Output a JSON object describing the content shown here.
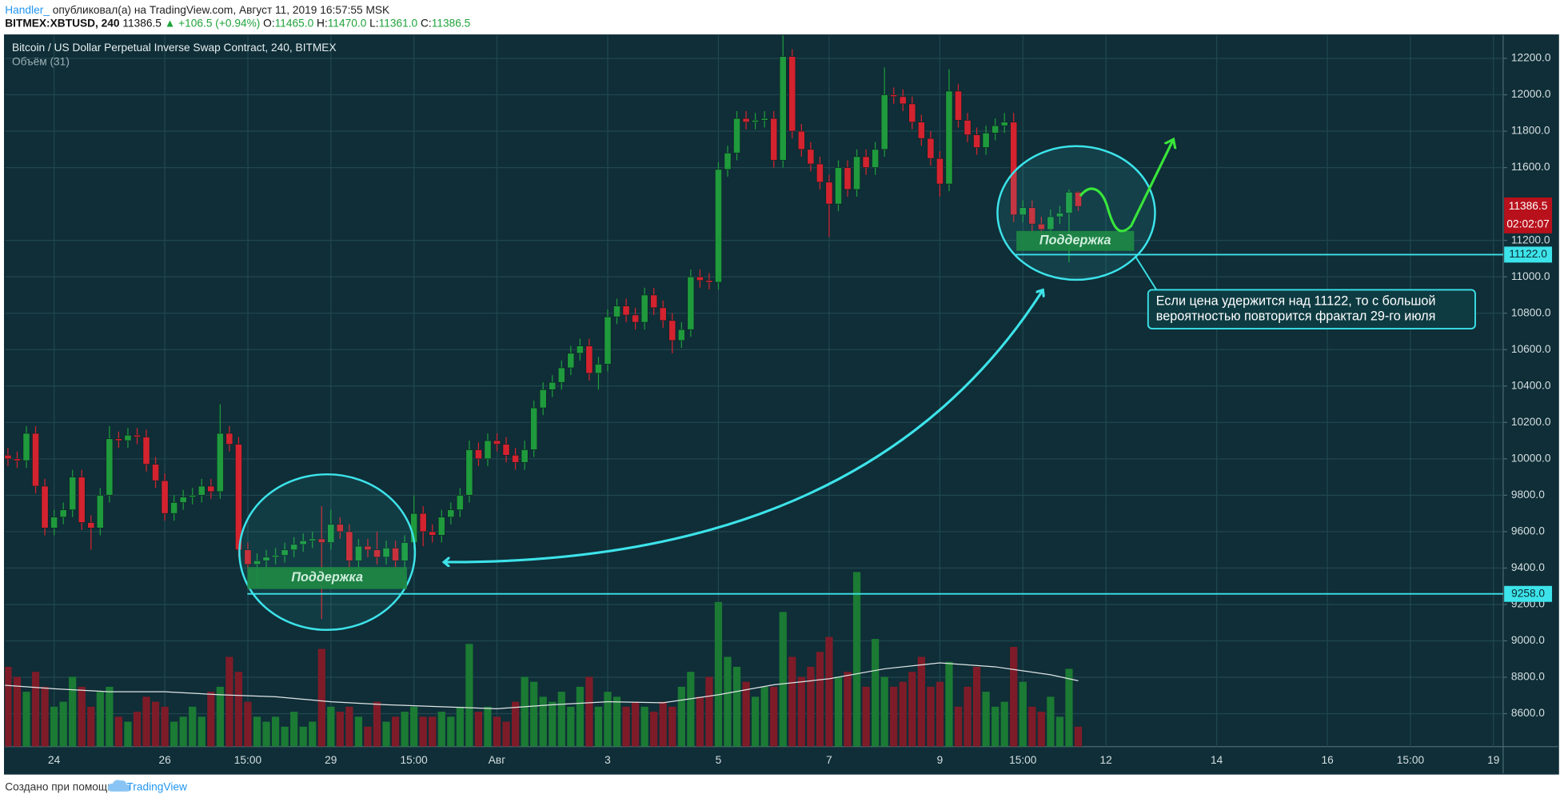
{
  "header": {
    "author": "Handler_",
    "published": "опубликовал(а) на TradingView.com, Август 11, 2019 16:57:55 MSK",
    "symbol": "BITMEX:XBTUSD, 240",
    "price": "11386.5",
    "change": "▲ +106.5 (+0.94%)",
    "ohlc": [
      {
        "key": "O:",
        "value": "11465.0"
      },
      {
        "key": "H:",
        "value": "11470.0"
      },
      {
        "key": "L:",
        "value": "11361.0"
      },
      {
        "key": "C:",
        "value": "11386.5"
      }
    ]
  },
  "chart_data": {
    "type": "candlestick",
    "title": "Bitcoin / US Dollar Perpetual Inverse Swap Contract, 240, BITMEX",
    "volume_title": "Объём (31)",
    "x": [
      0,
      1,
      2,
      3,
      4,
      5,
      6,
      7,
      8,
      9,
      10,
      11,
      12,
      13,
      14,
      15,
      16,
      17,
      18,
      19,
      20,
      21,
      22,
      23,
      24,
      25,
      26,
      27,
      28,
      29,
      30,
      31,
      32,
      33,
      34,
      35,
      36,
      37,
      38,
      39,
      40,
      41,
      42,
      43,
      44,
      45,
      46,
      47,
      48,
      49,
      50,
      51,
      52,
      53,
      54,
      55,
      56,
      57,
      58,
      59,
      60,
      61,
      62,
      63,
      64,
      65,
      66,
      67,
      68,
      69,
      70,
      71,
      72,
      73,
      74,
      75,
      76,
      77,
      78,
      79,
      80,
      81,
      82,
      83,
      84,
      85,
      86,
      87,
      88,
      89,
      90,
      91,
      92,
      93,
      94,
      95,
      96,
      97,
      98,
      99,
      100,
      101,
      102,
      103,
      104,
      105,
      106,
      107,
      108,
      109,
      110,
      111,
      112,
      113,
      114,
      115,
      116,
      117
    ],
    "open": [
      10240,
      10020,
      10000,
      9990,
      10140,
      9850,
      9620,
      9680,
      9720,
      9900,
      9650,
      9620,
      9800,
      10110,
      10100,
      10130,
      10120,
      9970,
      9880,
      9700,
      9760,
      9790,
      9800,
      9850,
      9820,
      10140,
      10080,
      9500,
      9420,
      9440,
      9460,
      9470,
      9500,
      9530,
      9550,
      9560,
      9540,
      9640,
      9600,
      9440,
      9520,
      9500,
      9460,
      9510,
      9440,
      9540,
      9700,
      9600,
      9580,
      9680,
      9720,
      9800,
      10050,
      10000,
      10100,
      10080,
      10020,
      9980,
      10050,
      10280,
      10380,
      10420,
      10500,
      10580,
      10620,
      10470,
      10520,
      10780,
      10840,
      10790,
      10750,
      10900,
      10830,
      10760,
      10650,
      10710,
      11000,
      10980,
      10970,
      11590,
      11680,
      11870,
      11850,
      11860,
      11870,
      11640,
      12210,
      11800,
      11700,
      11620,
      11520,
      11400,
      11600,
      11480,
      11660,
      11600,
      11700,
      12000,
      11990,
      11950,
      11850,
      11760,
      11650,
      11510,
      12020,
      11860,
      11780,
      11710,
      11790,
      11830,
      11850,
      11340,
      11380,
      11290,
      11260,
      11330,
      11350,
      11465
    ],
    "high": [
      10280,
      10060,
      10040,
      10180,
      10180,
      9890,
      9720,
      9760,
      9940,
      9940,
      9690,
      9840,
      10180,
      10150,
      10170,
      10170,
      10160,
      10010,
      9920,
      9800,
      9830,
      9840,
      9890,
      9890,
      10300,
      10180,
      10120,
      9540,
      9480,
      9500,
      9510,
      9540,
      9570,
      9590,
      9600,
      9740,
      9720,
      9680,
      9640,
      9560,
      9560,
      9600,
      9550,
      9550,
      9580,
      9800,
      9740,
      9640,
      9720,
      9760,
      9840,
      10100,
      10090,
      10140,
      10140,
      10120,
      10060,
      10100,
      10320,
      10420,
      10460,
      10540,
      10620,
      10660,
      10660,
      10560,
      10820,
      10880,
      10880,
      10830,
      10940,
      10940,
      10870,
      10800,
      10750,
      11040,
      11040,
      11020,
      11630,
      11720,
      11910,
      11910,
      11900,
      11910,
      11910,
      12330,
      12250,
      11840,
      11740,
      11660,
      11560,
      11640,
      11640,
      11700,
      11700,
      11740,
      12150,
      12040,
      12030,
      11990,
      11890,
      11800,
      11690,
      12140,
      12060,
      11900,
      11820,
      11830,
      11870,
      11900,
      11900,
      11420,
      11420,
      11330,
      11370,
      11390,
      11480,
      11470
    ],
    "low": [
      9980,
      9960,
      9950,
      9950,
      9810,
      9580,
      9580,
      9640,
      9680,
      9610,
      9500,
      9580,
      9760,
      10060,
      10060,
      10080,
      9930,
      9840,
      9660,
      9660,
      9720,
      9750,
      9760,
      9780,
      9780,
      10040,
      9460,
      9380,
      9300,
      9400,
      9420,
      9430,
      9460,
      9490,
      9510,
      9120,
      9500,
      9560,
      9400,
      9400,
      9460,
      9420,
      9420,
      9400,
      9400,
      9500,
      9520,
      9540,
      9540,
      9640,
      9680,
      9760,
      9960,
      9960,
      10040,
      9980,
      9940,
      9940,
      10010,
      10240,
      10340,
      10380,
      10460,
      10540,
      10430,
      10380,
      10480,
      10740,
      10750,
      10710,
      10710,
      10790,
      10720,
      10580,
      10610,
      10670,
      10940,
      10930,
      10930,
      11550,
      11640,
      11810,
      11810,
      11820,
      11600,
      11600,
      11760,
      11660,
      11580,
      11480,
      11220,
      11360,
      11440,
      11440,
      11560,
      11560,
      11660,
      11950,
      11910,
      11810,
      11720,
      11610,
      11440,
      11470,
      11820,
      11740,
      11670,
      11670,
      11750,
      11790,
      11300,
      11300,
      11250,
      11220,
      11220,
      11290,
      11080,
      11361
    ],
    "close": [
      10020,
      10000,
      9990,
      10140,
      9850,
      9620,
      9680,
      9720,
      9900,
      9650,
      9620,
      9800,
      10110,
      10100,
      10130,
      10120,
      9970,
      9880,
      9700,
      9760,
      9790,
      9800,
      9850,
      9820,
      10140,
      10080,
      9500,
      9420,
      9440,
      9460,
      9470,
      9500,
      9530,
      9550,
      9560,
      9540,
      9640,
      9600,
      9440,
      9520,
      9500,
      9460,
      9510,
      9440,
      9540,
      9700,
      9600,
      9580,
      9680,
      9720,
      9800,
      10050,
      10000,
      10100,
      10080,
      10020,
      9980,
      10050,
      10280,
      10380,
      10420,
      10500,
      10580,
      10620,
      10470,
      10520,
      10780,
      10840,
      10790,
      10750,
      10900,
      10830,
      10760,
      10650,
      10710,
      11000,
      10980,
      10970,
      11590,
      11680,
      11870,
      11850,
      11860,
      11870,
      11640,
      12210,
      11800,
      11700,
      11620,
      11520,
      11400,
      11600,
      11480,
      11660,
      11600,
      11700,
      12000,
      11990,
      11950,
      11850,
      11760,
      11650,
      11510,
      12020,
      11860,
      11780,
      11710,
      11790,
      11830,
      11850,
      11340,
      11380,
      11290,
      11260,
      11330,
      11350,
      11465,
      11386.5
    ],
    "volume": [
      85,
      80,
      70,
      55,
      75,
      60,
      40,
      45,
      70,
      60,
      40,
      55,
      60,
      30,
      25,
      35,
      50,
      45,
      40,
      25,
      30,
      40,
      30,
      55,
      60,
      90,
      75,
      45,
      30,
      25,
      30,
      20,
      35,
      20,
      25,
      98,
      40,
      35,
      40,
      30,
      20,
      45,
      25,
      30,
      35,
      40,
      30,
      30,
      35,
      30,
      40,
      103,
      35,
      40,
      30,
      25,
      45,
      70,
      65,
      50,
      45,
      55,
      40,
      60,
      70,
      40,
      55,
      50,
      40,
      45,
      40,
      35,
      45,
      40,
      60,
      75,
      50,
      70,
      145,
      90,
      80,
      65,
      50,
      60,
      60,
      135,
      90,
      70,
      80,
      95,
      110,
      70,
      75,
      175,
      60,
      108,
      70,
      60,
      65,
      75,
      90,
      60,
      65,
      85,
      40,
      60,
      80,
      55,
      40,
      45,
      100,
      65,
      40,
      35,
      50,
      30,
      78,
      20
    ],
    "volume_ma_x": [
      0,
      6,
      12,
      18,
      24,
      30,
      36,
      42,
      48,
      54,
      60,
      66,
      72,
      78,
      84,
      90,
      96,
      102,
      108,
      114,
      117
    ],
    "volume_ma": [
      62,
      58,
      55,
      55,
      52,
      50,
      45,
      42,
      40,
      38,
      42,
      45,
      44,
      52,
      62,
      68,
      78,
      84,
      80,
      72,
      66
    ],
    "volume_lim": [
      0,
      180
    ],
    "xlim": [
      0.68,
      163.05
    ],
    "xticks": [
      {
        "value": 6,
        "label": "24"
      },
      {
        "value": 18,
        "label": "26"
      },
      {
        "value": 27,
        "label": "15:00"
      },
      {
        "value": 36,
        "label": "29"
      },
      {
        "value": 45,
        "label": "15:00"
      },
      {
        "value": 54,
        "label": "Авг"
      },
      {
        "value": 66,
        "label": "3"
      },
      {
        "value": 78,
        "label": "5"
      },
      {
        "value": 90,
        "label": "7"
      },
      {
        "value": 102,
        "label": "9"
      },
      {
        "value": 111,
        "label": "15:00"
      },
      {
        "value": 120,
        "label": "12"
      },
      {
        "value": 132,
        "label": "14"
      },
      {
        "value": 144,
        "label": "16"
      },
      {
        "value": 153,
        "label": "15:00"
      },
      {
        "value": 162,
        "label": "19"
      }
    ],
    "ylim": [
      8419,
      12326
    ],
    "yticks": [
      {
        "value": 8600,
        "label": "8600.0"
      },
      {
        "value": 8800,
        "label": "8800.0"
      },
      {
        "value": 9000,
        "label": "9000.0"
      },
      {
        "value": 9200,
        "label": "9200.0"
      },
      {
        "value": 9400,
        "label": "9400.0"
      },
      {
        "value": 9600,
        "label": "9600.0"
      },
      {
        "value": 9800,
        "label": "9800.0"
      },
      {
        "value": 10000,
        "label": "10000.0"
      },
      {
        "value": 10200,
        "label": "10200.0"
      },
      {
        "value": 10400,
        "label": "10400.0"
      },
      {
        "value": 10600,
        "label": "10600.0"
      },
      {
        "value": 10800,
        "label": "10800.0"
      },
      {
        "value": 11000,
        "label": "11000.0"
      },
      {
        "value": 11200,
        "label": "11200.0"
      },
      {
        "value": 11600,
        "label": "11600.0"
      },
      {
        "value": 11800,
        "label": "11800.0"
      },
      {
        "value": 12000,
        "label": "12000.0"
      },
      {
        "value": 12200,
        "label": "12200.0"
      }
    ],
    "grid": true,
    "up_color": "#1f9a3c",
    "down_color": "#d3232f",
    "volume_up_color": "#1b7a34",
    "volume_down_color": "#7d1c28",
    "ma_color": "#dfe6e8",
    "last_price": 11386.5,
    "countdown": "02:02:07",
    "levels": [
      {
        "value": 9258,
        "label": "9258.0"
      },
      {
        "value": 11122,
        "label": "11122.0"
      }
    ],
    "zones": [
      "Поддержка",
      "Поддержка"
    ],
    "note": [
      "Если цена удержится над 11122, то с большой",
      "вероятностью повторится фрактал 29-го июля"
    ]
  },
  "footer": {
    "text": "Создано при помощи",
    "brand": "TradingView"
  }
}
